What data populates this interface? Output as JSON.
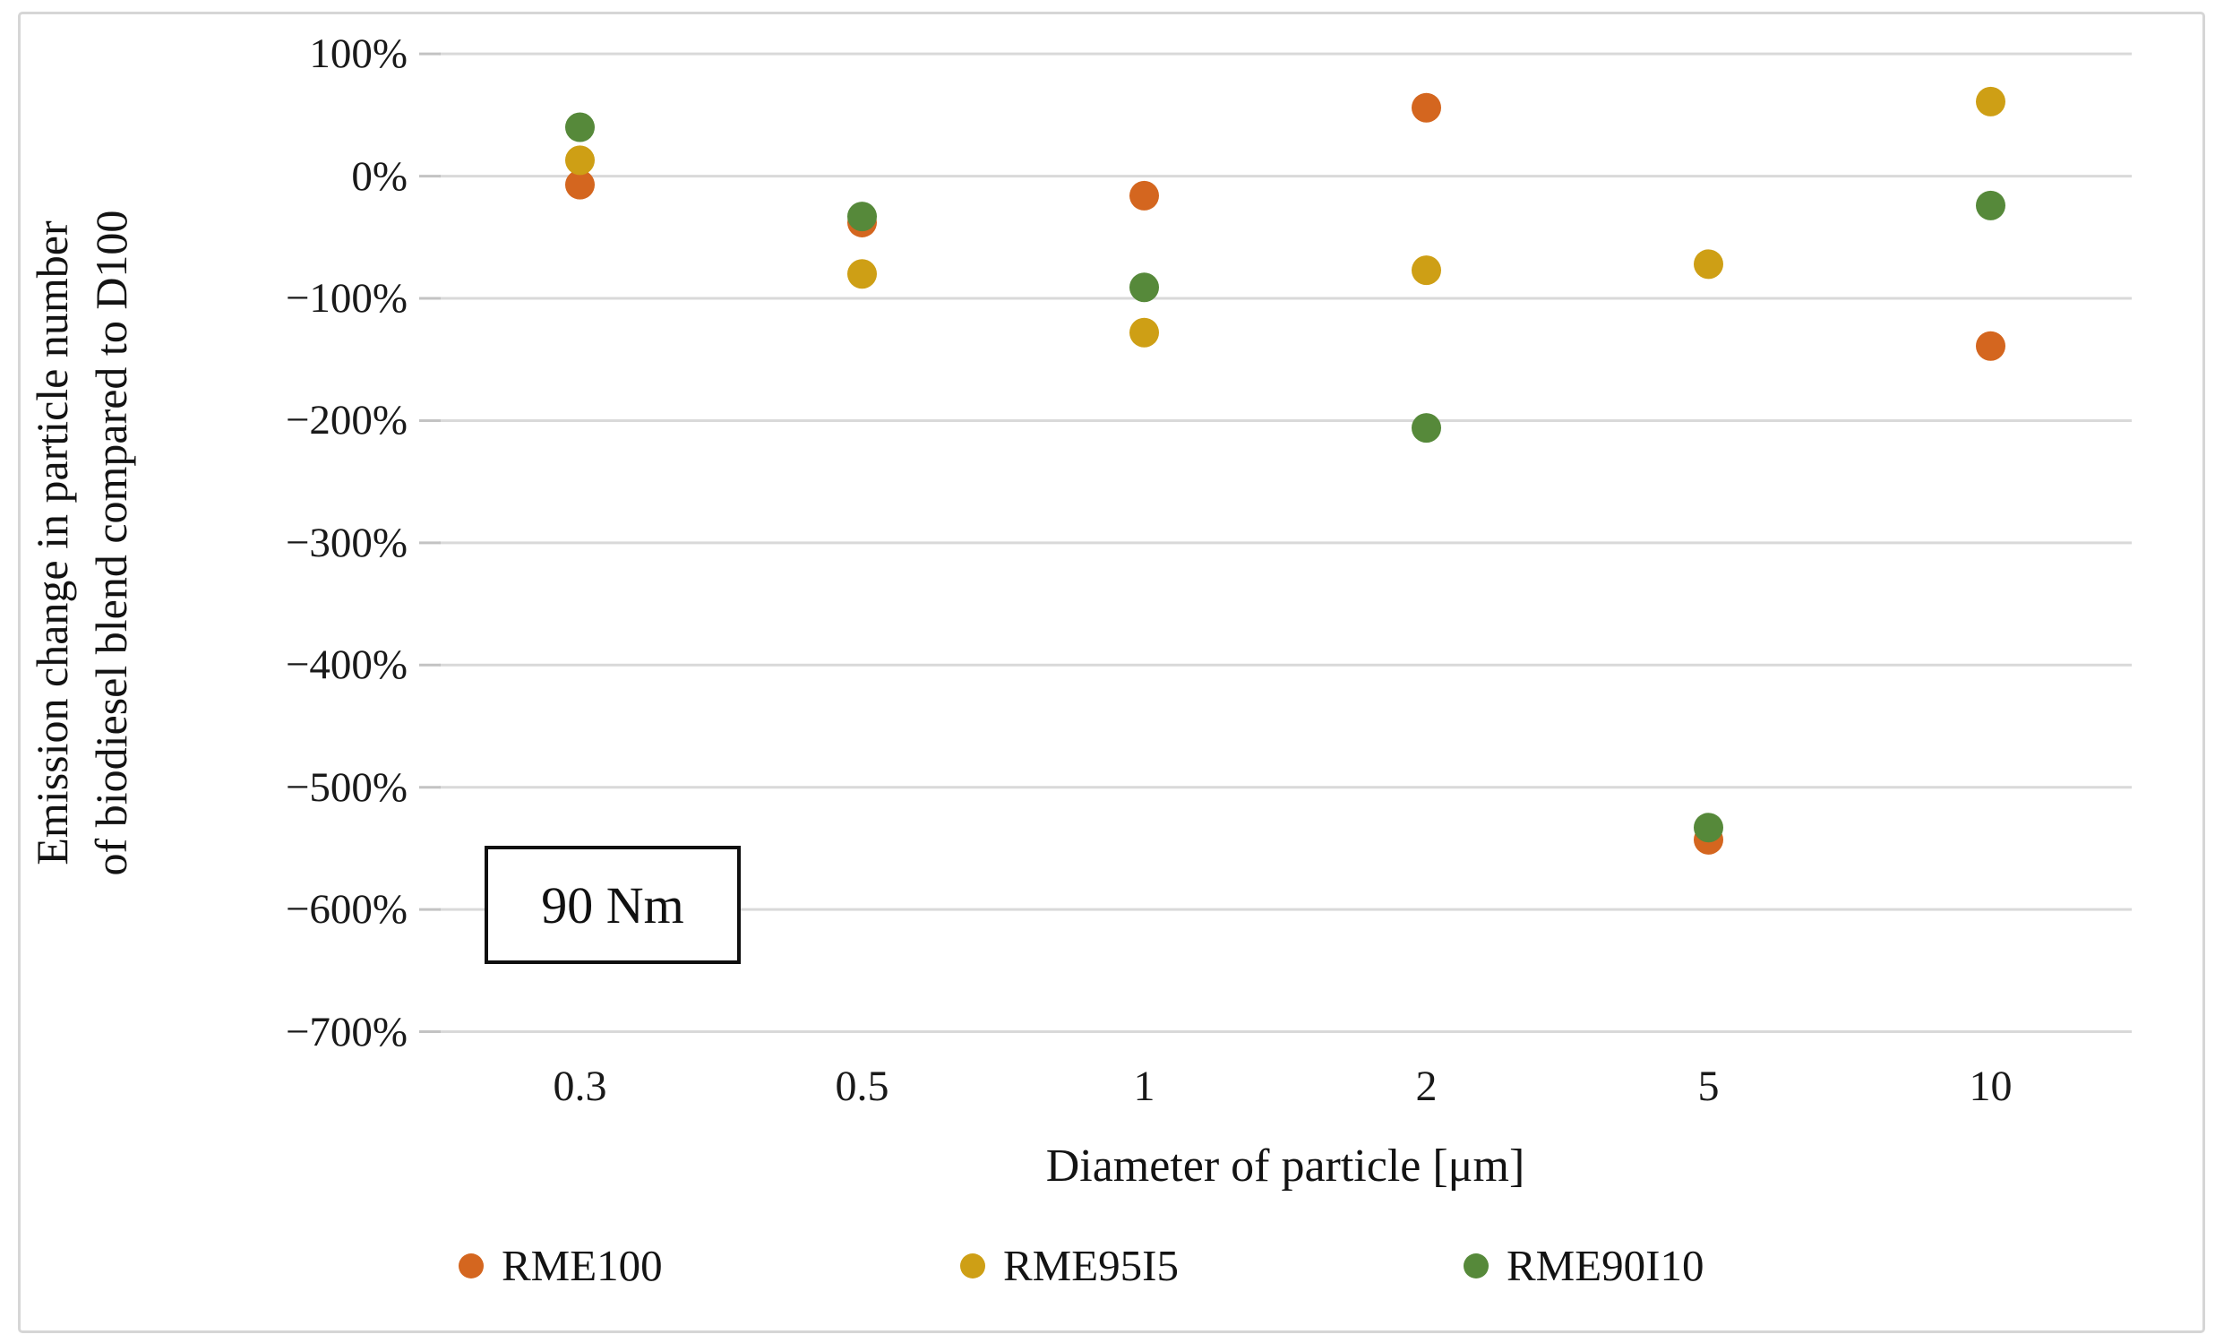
{
  "chart_data": {
    "type": "scatter",
    "annotation": "90 Nm",
    "xlabel": "Diameter of particle [μm]",
    "ylabel_line1": "Emission change in particle number",
    "ylabel_line2": "of biodiesel blend compared to D100",
    "categories": [
      "0.3",
      "0.5",
      "1",
      "2",
      "5",
      "10"
    ],
    "y_ticks": [
      "100%",
      "0%",
      "−100%",
      "−200%",
      "−300%",
      "−400%",
      "−500%",
      "−600%",
      "−700%"
    ],
    "ylim": [
      -700,
      100
    ],
    "y_step": 100,
    "grid": true,
    "legend_position": "bottom",
    "series": [
      {
        "name": "RME100",
        "color": "#d4661f",
        "values": [
          -7,
          -38,
          -16,
          56,
          -543,
          -139
        ]
      },
      {
        "name": "RME95I5",
        "color": "#ce9f15",
        "values": [
          13,
          -80,
          -128,
          -77,
          -72,
          61
        ]
      },
      {
        "name": "RME90I10",
        "color": "#56893a",
        "values": [
          40,
          -33,
          -91,
          -206,
          -533,
          -24
        ]
      }
    ]
  },
  "style_colors": {
    "gridline": "#d9d9d9",
    "tick_mark": "#c3c3c3",
    "figure_border": "#d6d6d6"
  }
}
